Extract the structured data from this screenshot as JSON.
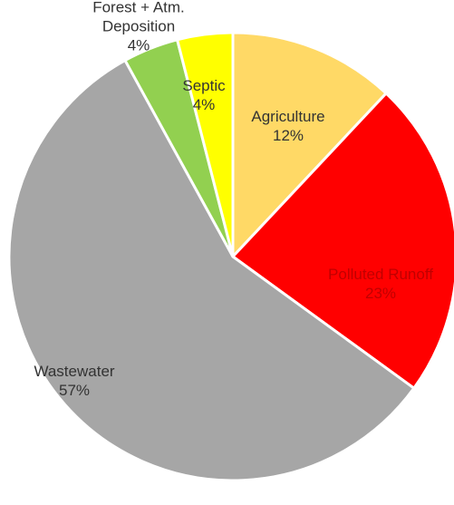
{
  "chart_data": {
    "type": "pie",
    "title": "",
    "start_angle_deg": 0,
    "direction": "clockwise",
    "slices": [
      {
        "name": "Agriculture",
        "value": 12,
        "label": "12%",
        "color": "#FFD966"
      },
      {
        "name": "Polluted Runoff",
        "value": 23,
        "label": "23%",
        "color": "#FF0000",
        "text_color": "#C00000"
      },
      {
        "name": "Wastewater",
        "value": 57,
        "label": "57%",
        "color": "#A6A6A6"
      },
      {
        "name": "Forest + Atm. Deposition",
        "name_lines": [
          "Forest + Atm.",
          "Deposition"
        ],
        "value": 4,
        "label": "4%",
        "color": "#92D050",
        "label_outside": true
      },
      {
        "name": "Septic",
        "value": 4,
        "label": "4%",
        "color": "#FFFF00"
      }
    ]
  }
}
